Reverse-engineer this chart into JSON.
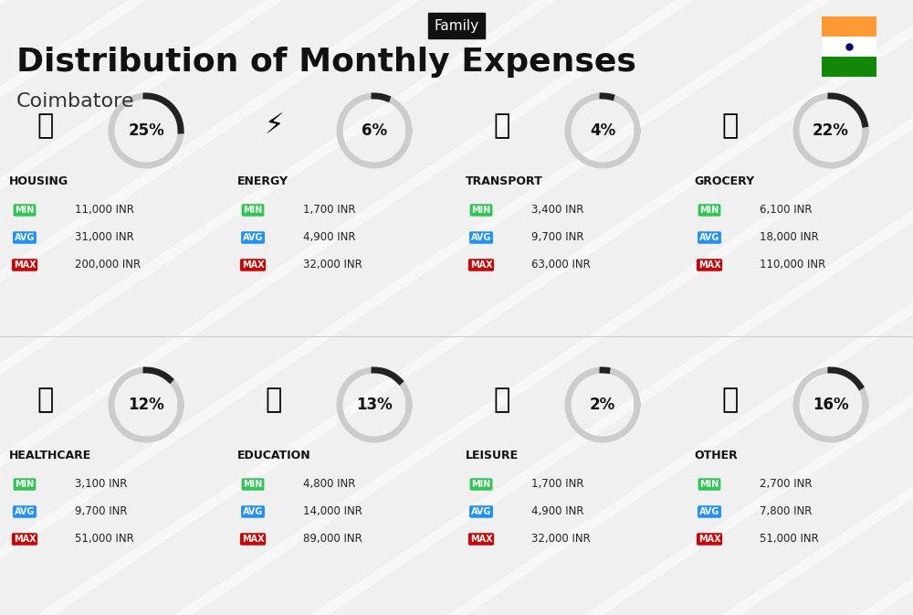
{
  "title": "Distribution of Monthly Expenses",
  "subtitle": "Coimbatore",
  "header_tag": "Family",
  "bg_color": "#f0f0f0",
  "categories": [
    {
      "name": "HOUSING",
      "pct": 25,
      "min_val": "11,000 INR",
      "avg_val": "31,000 INR",
      "max_val": "200,000 INR",
      "row": 0,
      "col": 0
    },
    {
      "name": "ENERGY",
      "pct": 6,
      "min_val": "1,700 INR",
      "avg_val": "4,900 INR",
      "max_val": "32,000 INR",
      "row": 0,
      "col": 1
    },
    {
      "name": "TRANSPORT",
      "pct": 4,
      "min_val": "3,400 INR",
      "avg_val": "9,700 INR",
      "max_val": "63,000 INR",
      "row": 0,
      "col": 2
    },
    {
      "name": "GROCERY",
      "pct": 22,
      "min_val": "6,100 INR",
      "avg_val": "18,000 INR",
      "max_val": "110,000 INR",
      "row": 0,
      "col": 3
    },
    {
      "name": "HEALTHCARE",
      "pct": 12,
      "min_val": "3,100 INR",
      "avg_val": "9,700 INR",
      "max_val": "51,000 INR",
      "row": 1,
      "col": 0
    },
    {
      "name": "EDUCATION",
      "pct": 13,
      "min_val": "4,800 INR",
      "avg_val": "14,000 INR",
      "max_val": "89,000 INR",
      "row": 1,
      "col": 1
    },
    {
      "name": "LEISURE",
      "pct": 2,
      "min_val": "1,700 INR",
      "avg_val": "4,900 INR",
      "max_val": "32,000 INR",
      "row": 1,
      "col": 2
    },
    {
      "name": "OTHER",
      "pct": 16,
      "min_val": "2,700 INR",
      "avg_val": "7,800 INR",
      "max_val": "51,000 INR",
      "row": 1,
      "col": 3
    }
  ],
  "min_color": "#2dc653",
  "avg_color": "#1e90ff",
  "max_color": "#cc0000",
  "donut_color": "#222222",
  "donut_gray": "#cccccc",
  "flag_orange": "#FF9933",
  "flag_green": "#138808",
  "flag_white": "#ffffff"
}
